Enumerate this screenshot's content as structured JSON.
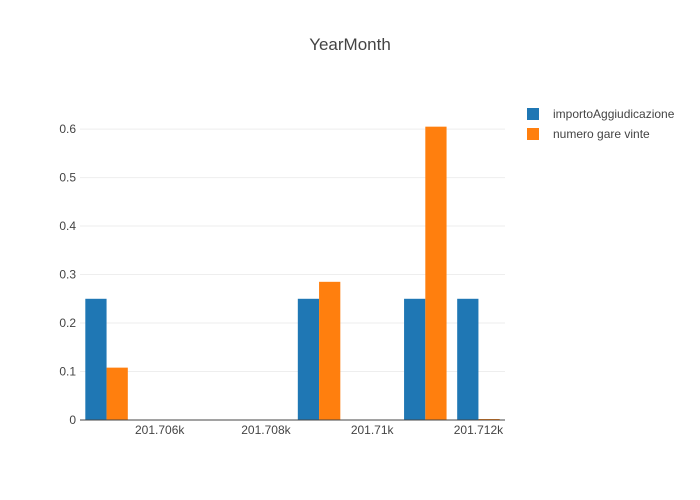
{
  "chart_data": {
    "type": "bar",
    "title": "YearMonth",
    "xlabel": "",
    "ylabel": "",
    "x_tick_labels": [
      {
        "value": 201706,
        "label": "201.706k"
      },
      {
        "value": 201708,
        "label": "201.708k"
      },
      {
        "value": 201710,
        "label": "201.71k"
      },
      {
        "value": 201712,
        "label": "201.712k"
      }
    ],
    "y_ticks": [
      0,
      0.1,
      0.2,
      0.3,
      0.4,
      0.5,
      0.6
    ],
    "y_tick_labels": [
      "0",
      "0.1",
      "0.2",
      "0.3",
      "0.4",
      "0.5",
      "0.6"
    ],
    "xlim": [
      201704.5,
      201712.5
    ],
    "ylim": [
      0,
      0.66
    ],
    "x": [
      201705,
      201709,
      201711,
      201712
    ],
    "series": [
      {
        "name": "importoAggiudicazione",
        "color": "#1f77b4",
        "values": [
          0.25,
          0.25,
          0.25,
          0.25
        ]
      },
      {
        "name": "numero gare vinte",
        "color": "#ff7f0e",
        "values": [
          0.108,
          0.285,
          0.605,
          0.0
        ]
      }
    ],
    "grid": true,
    "legend_position": "top-right"
  }
}
